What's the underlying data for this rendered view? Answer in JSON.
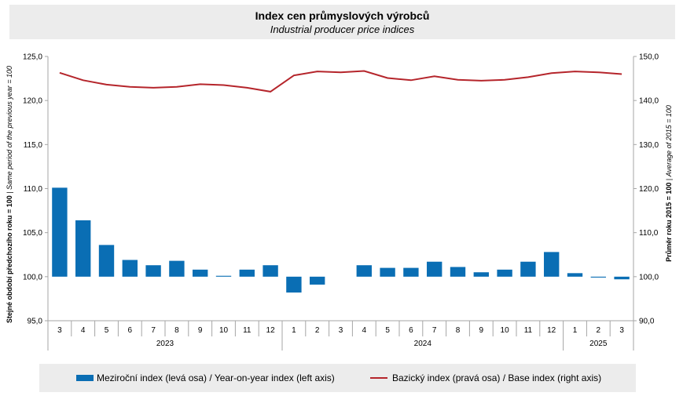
{
  "title": "Index cen průmyslových  výrobců",
  "subtitle": "Industrial producer price indices",
  "left_axis_label": {
    "main": "Stejné období předchozího roku = 100",
    "italic": "Same period of the previous year = 100"
  },
  "right_axis_label": {
    "main": "Průměr roku 2015 = 100",
    "italic": "Average of 2015 = 100"
  },
  "legend": {
    "bar_label": "Meziroční index (levá osa) / Year-on-year index (left axis)",
    "line_label": "Bazický index (pravá osa) / Base index (right axis)"
  },
  "colors": {
    "bar": "#0a6eb4",
    "line": "#b5252b",
    "axis": "#a6a6a6"
  },
  "chart_data": {
    "type": "bar",
    "months": [
      "3",
      "4",
      "5",
      "6",
      "7",
      "8",
      "9",
      "10",
      "11",
      "12",
      "1",
      "2",
      "3",
      "4",
      "5",
      "6",
      "7",
      "8",
      "9",
      "10",
      "11",
      "12",
      "1",
      "2",
      "3"
    ],
    "years": [
      {
        "label": "2023",
        "start": 0,
        "end": 10
      },
      {
        "label": "2024",
        "start": 10,
        "end": 22
      },
      {
        "label": "2025",
        "start": 22,
        "end": 25
      }
    ],
    "left_ticks": [
      "95,0",
      "100,0",
      "105,0",
      "110,0",
      "115,0",
      "120,0",
      "125,0"
    ],
    "right_ticks": [
      "90,0",
      "100,0",
      "110,0",
      "120,0",
      "130,0",
      "140,0",
      "150,0"
    ],
    "ylim_left": [
      95,
      125
    ],
    "ylim_right": [
      90,
      150
    ],
    "series": [
      {
        "name": "Meziroční index (levá osa) / Year-on-year index (left axis)",
        "type": "bar",
        "axis": "left",
        "values": [
          110.1,
          106.4,
          103.6,
          101.9,
          101.3,
          101.8,
          100.8,
          100.1,
          100.8,
          101.3,
          98.2,
          99.1,
          100.0,
          101.3,
          101.0,
          101.0,
          101.7,
          101.1,
          100.5,
          100.8,
          101.7,
          102.8,
          100.4,
          99.9,
          99.7
        ]
      },
      {
        "name": "Bazický index (pravá osa) / Base index (right axis)",
        "type": "line",
        "axis": "right",
        "values": [
          146.3,
          144.6,
          143.6,
          143.1,
          142.9,
          143.1,
          143.7,
          143.5,
          142.9,
          142.0,
          145.7,
          146.6,
          146.4,
          146.7,
          145.1,
          144.6,
          145.5,
          144.7,
          144.5,
          144.7,
          145.3,
          146.2,
          146.6,
          146.4,
          146.0
        ]
      }
    ]
  }
}
